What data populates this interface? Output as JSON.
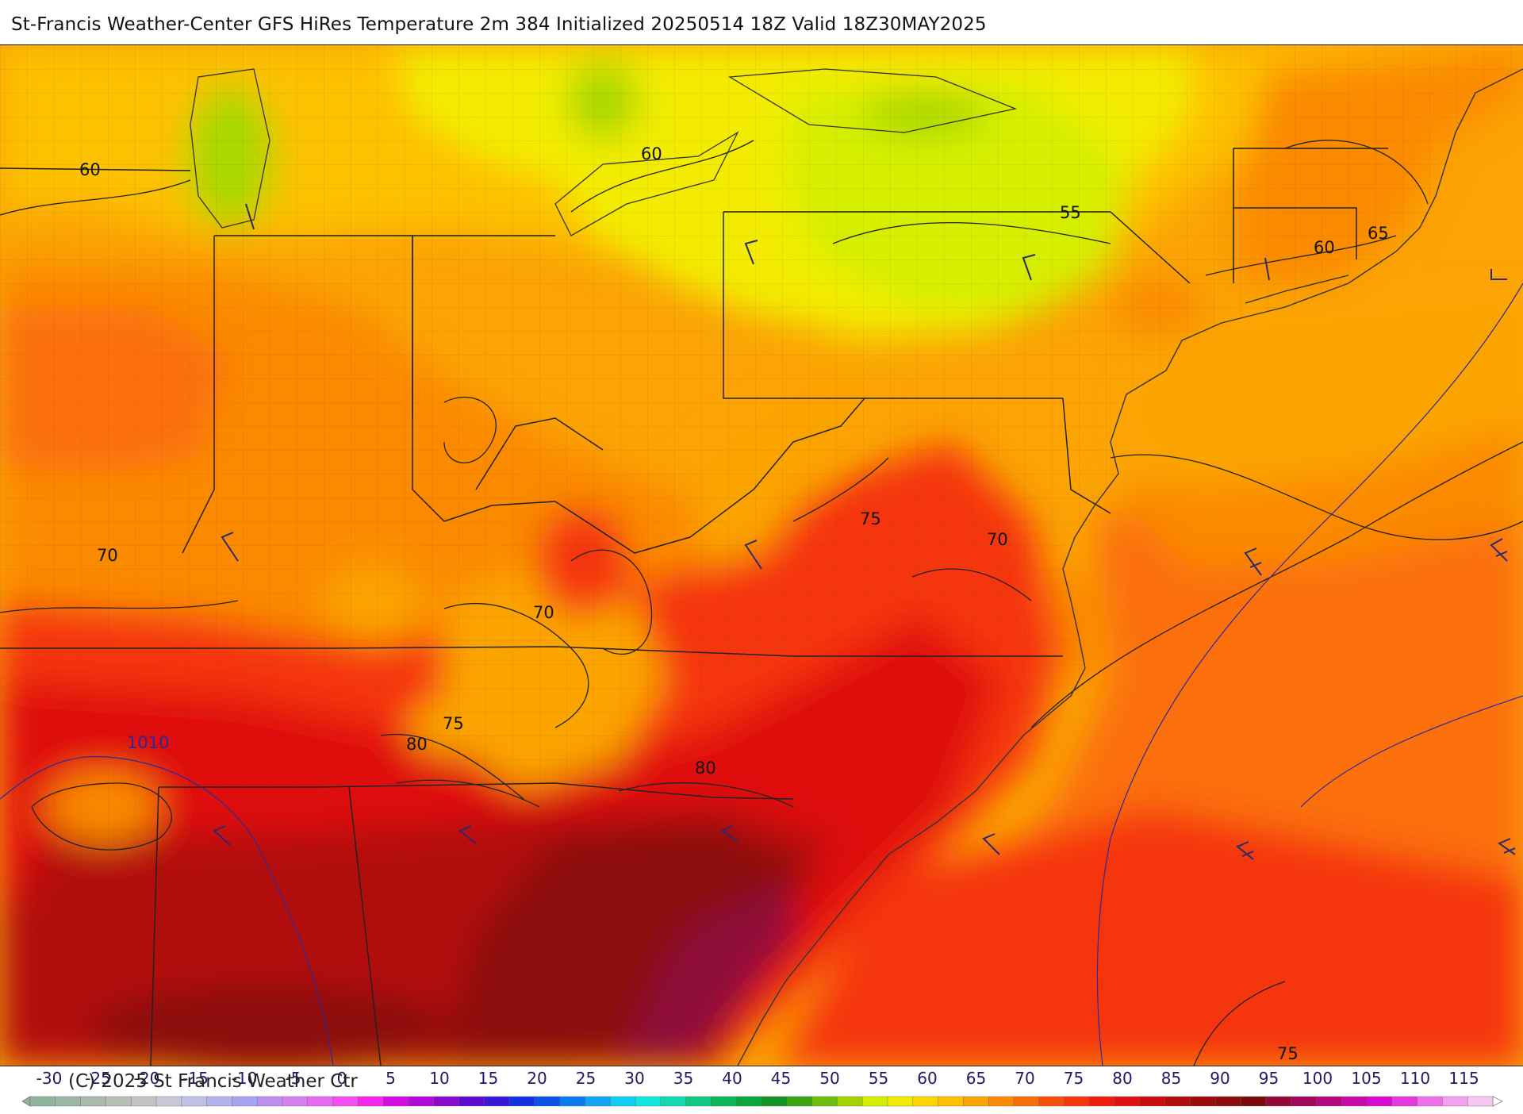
{
  "title": "St-Francis Weather-Center GFS HiRes Temperature 2m  384 Initialized 20250514 18Z Valid 18Z30MAY2025",
  "copyright": "(C) 2025 St Francis Weather Ctr",
  "colors": {
    "deep_red": "#8c0b0b",
    "red": "#e01010",
    "red_orange": "#f5350a",
    "orange": "#fb6f08",
    "light_orange": "#fba404",
    "amber": "#fdc100",
    "yellow": "#f3ec00",
    "yellow_green": "#d6ef00",
    "green": "#a9d800",
    "magenta": "#9a1050",
    "isobar": "#2a2a9c"
  },
  "isotherm_labels": [
    {
      "text": "60"
    },
    {
      "text": "60"
    },
    {
      "text": "55"
    },
    {
      "text": "60"
    },
    {
      "text": "65"
    },
    {
      "text": "70"
    },
    {
      "text": "70"
    },
    {
      "text": "75"
    },
    {
      "text": "70"
    },
    {
      "text": "75"
    },
    {
      "text": "80"
    },
    {
      "text": "80"
    },
    {
      "text": "75"
    }
  ],
  "isobar_labels": [
    {
      "text": "1010"
    }
  ],
  "colorbar": {
    "labels": [
      "-30",
      "-25",
      "-20",
      "-15",
      "-10",
      "-5",
      "0",
      "5",
      "10",
      "15",
      "20",
      "25",
      "30",
      "35",
      "40",
      "45",
      "50",
      "55",
      "60",
      "65",
      "70",
      "75",
      "80",
      "85",
      "90",
      "95",
      "100",
      "105",
      "110",
      "115"
    ],
    "colors": [
      "#8fb59a",
      "#9cb8a3",
      "#a9bcac",
      "#b7c0b5",
      "#c3c3c3",
      "#c8c8d8",
      "#c0c0e6",
      "#b3b3ee",
      "#a5a5f2",
      "#bd8fee",
      "#d67ff0",
      "#e56cf2",
      "#f24ef4",
      "#f526ee",
      "#d40de4",
      "#b10ad9",
      "#8a0ad0",
      "#5f0ad0",
      "#3a17d6",
      "#1530e0",
      "#0a52e8",
      "#0b7cef",
      "#10a6f3",
      "#12cdf5",
      "#12e8e0",
      "#14d9b0",
      "#10c884",
      "#0ab85a",
      "#0aa73a",
      "#119622",
      "#3aa60f",
      "#6ebd0a",
      "#a3d400",
      "#d6ef00",
      "#f3ec00",
      "#fdd600",
      "#fdc100",
      "#fba404",
      "#fb8a06",
      "#fb6f08",
      "#f5500a",
      "#f5350a",
      "#ee1c0c",
      "#e01010",
      "#c90d0d",
      "#b20c0c",
      "#9c0b0b",
      "#8c0b0b",
      "#7a0a0a",
      "#8f0a3a",
      "#a10a5a",
      "#b30a80",
      "#c70aa8",
      "#d90ad0",
      "#e63ae0",
      "#ee70ea",
      "#f3a0ef",
      "#f7c8f4"
    ]
  }
}
